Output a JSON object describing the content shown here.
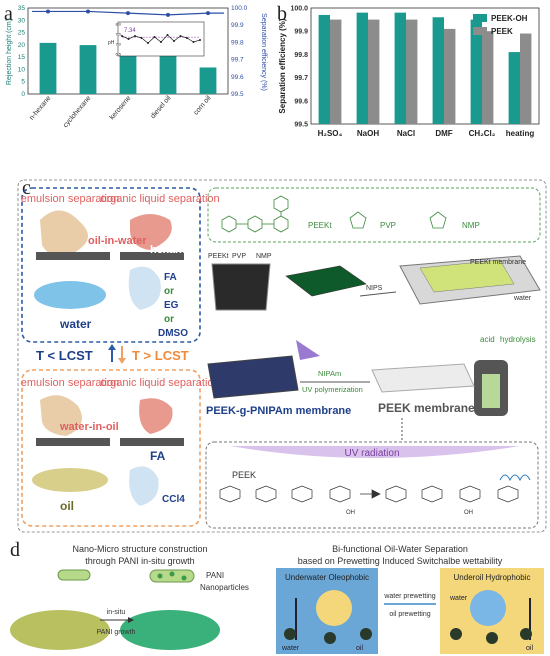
{
  "panel_a": {
    "letter": "a",
    "left_axis_label": "Rejection height (cm)",
    "right_axis_label": "Separation efficiency (%)",
    "inset_value": "7.34",
    "inset_ylabel": "pH",
    "inset_yticks": [
      "8.0",
      "7.5",
      "7.0",
      "6.5"
    ],
    "left_yticks": [
      "35",
      "30",
      "25",
      "20",
      "15",
      "10",
      "5",
      "0"
    ],
    "right_yticks": [
      "100.0",
      "99.9",
      "99.8",
      "99.7",
      "99.6",
      "99.5"
    ]
  },
  "panel_b": {
    "letter": "b",
    "ylabel": "Separation efficiency (%)",
    "yticks": [
      "100.0",
      "99.9",
      "99.8",
      "99.7",
      "99.6",
      "99.5"
    ],
    "legend": [
      "PEEK-OH",
      "PEEK"
    ]
  },
  "panel_c": {
    "letter": "c",
    "emulsion_top": "emulsion separation",
    "organic_top": "organic liquid separation",
    "oil_in_water": "oil-in-water",
    "hexane": "hexane",
    "water": "water",
    "fa_list": [
      "FA",
      "or",
      "EG",
      "or",
      "DMSO"
    ],
    "lcst_low": "T < LCST",
    "lcst_high": "T > LCST",
    "emulsion_bottom": "emulsion separation",
    "organic_bottom": "organic liquid separation",
    "water_in_oil": "water-in-oil",
    "fa_bottom": "FA",
    "oil": "oil",
    "ccl4": "CCl4",
    "chem_labels": [
      "PEEKt",
      "PVP",
      "NMP"
    ],
    "stock_labels": [
      "PEEKt",
      "PVP",
      "NMP"
    ],
    "nips": "NIPS",
    "peekt_membrane": "PEEKt membrane",
    "water_bath": "water",
    "acid": "acid",
    "hydrolysis": "hydrolysis",
    "nipam": "NIPAm",
    "uv_poly": "UV polymerization",
    "graft_membrane": "PEEK-g-PNIPAm membrane",
    "peek_membrane": "PEEK membrane",
    "uv_radiation": "UV radiation",
    "peek_chain": "PEEK",
    "oh1": "OH",
    "oh2": "OH"
  },
  "panel_d": {
    "letter": "d",
    "left_title1": "Nano-Micro structure construction",
    "left_title2": "through PANI in-situ growth",
    "in_situ": "in-situ",
    "pani_growth": "PANI growth",
    "pani": "PANI",
    "nanoparticles": "Nanoparticles",
    "right_title1": "Bi-functional Oil-Water Separation",
    "right_title2": "based on Prewetting Induced Switchalbe wettability",
    "underwater": "Underwater Oleophobic",
    "underoil": "Underoil Hydrophobic",
    "water_prewetting": "water prewetting",
    "oil_prewetting": "oil prewetting",
    "water_l": "water",
    "oil_l": "oil",
    "water_r": "water",
    "oil_r": "oil"
  },
  "chart_data": [
    {
      "type": "bar",
      "categories": [
        "n-hexane",
        "cyclohexane",
        "kerosene",
        "diesel oil",
        "corn oil"
      ],
      "series": [
        {
          "name": "Rejection height (cm)",
          "values": [
            20.8,
            19.9,
            19.1,
            16.3,
            10.8
          ]
        },
        {
          "name": "Separation efficiency (%)",
          "values": [
            99.98,
            99.98,
            99.97,
            99.96,
            99.97
          ]
        }
      ],
      "xlabel": "",
      "ylabel": "Rejection height (cm)",
      "ylim": [
        0,
        35
      ],
      "y2label": "Separation efficiency (%)",
      "y2lim": [
        99.5,
        100.0
      ],
      "inset": {
        "type": "line",
        "values": [
          7.4,
          7.25,
          7.4,
          7.3,
          7.05,
          7.35,
          7.1,
          7.45,
          7.15,
          7.4,
          7.3,
          7.1,
          7.2
        ],
        "reference": 7.34,
        "ylim": [
          6.5,
          8.0
        ]
      },
      "colors": {
        "bars": "#1a9a8e",
        "line": "#2d4fa8"
      }
    },
    {
      "type": "bar",
      "categories": [
        "H2SO4",
        "NaOH",
        "NaCl",
        "DMF",
        "CH2Cl2",
        "heating"
      ],
      "series": [
        {
          "name": "PEEK-OH",
          "values": [
            99.97,
            99.98,
            99.98,
            99.96,
            99.95,
            99.81
          ]
        },
        {
          "name": "PEEK",
          "values": [
            99.95,
            99.95,
            99.95,
            99.91,
            99.9,
            99.89
          ]
        }
      ],
      "ylabel": "Separation efficiency (%)",
      "ylim": [
        99.5,
        100.0
      ],
      "legend": "top-right",
      "colors": {
        "PEEK-OH": "#1a9a8e",
        "PEEK": "#8c8c8c"
      }
    }
  ]
}
